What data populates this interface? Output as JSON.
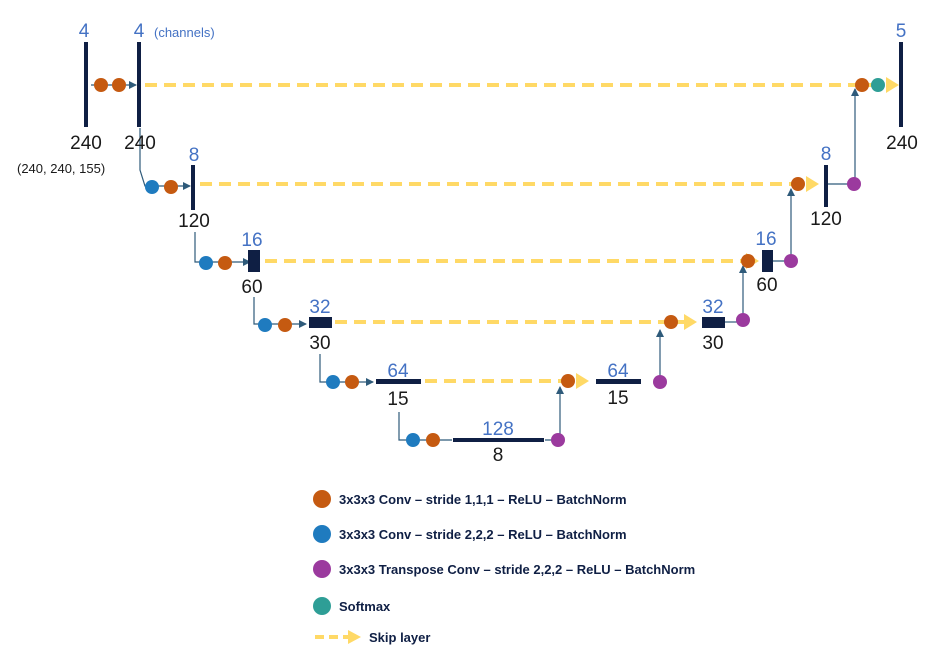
{
  "diagram": {
    "top_left": {
      "channels_in": "4",
      "channels_conv": "4",
      "channels_note": "(channels)",
      "size_in": "240",
      "size_conv": "240",
      "input_shape": "(240, 240, 155)"
    },
    "output": {
      "channels": "5",
      "size": "240"
    },
    "encoder": [
      {
        "channels": "8",
        "size": "120"
      },
      {
        "channels": "16",
        "size": "60"
      },
      {
        "channels": "32",
        "size": "30"
      },
      {
        "channels": "64",
        "size": "15"
      }
    ],
    "bottleneck": {
      "channels": "128",
      "size": "8"
    },
    "decoder": [
      {
        "channels": "64",
        "size": "15"
      },
      {
        "channels": "32",
        "size": "30"
      },
      {
        "channels": "16",
        "size": "60"
      },
      {
        "channels": "8",
        "size": "120"
      }
    ]
  },
  "legend": {
    "conv_stride1": "3x3x3 Conv – stride 1,1,1 – ReLU – BatchNorm",
    "conv_stride2": "3x3x3 Conv – stride 2,2,2 – ReLU – BatchNorm",
    "transpose_conv": "3x3x3 Transpose Conv – stride 2,2,2 – ReLU – BatchNorm",
    "softmax": "Softmax",
    "skip": "Skip layer"
  },
  "colors": {
    "orange": "#c55a11",
    "blue": "#1f7bbf",
    "purple": "#9b3a9e",
    "teal": "#2e9e96",
    "skip": "#ffd966",
    "bar": "#0f1f44",
    "line": "#2e5a7a",
    "label_blue": "#4472c4"
  }
}
